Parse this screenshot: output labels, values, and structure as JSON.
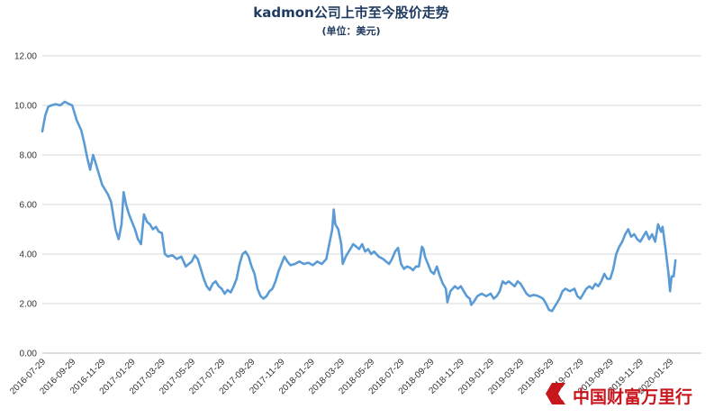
{
  "chart_data": {
    "type": "line",
    "title": "kadmon公司上市至今股价走势",
    "subtitle": "(单位：美元)",
    "ylim": [
      0,
      12
    ],
    "yticks": [
      "0.00",
      "2.00",
      "4.00",
      "6.00",
      "8.00",
      "10.00",
      "12.00"
    ],
    "categories": [
      "2016-07-29",
      "2016-09-29",
      "2016-11-29",
      "2017-01-29",
      "2017-03-29",
      "2017-05-29",
      "2017-07-29",
      "2017-09-29",
      "2017-11-29",
      "2018-01-29",
      "2018-03-29",
      "2018-05-29",
      "2018-07-29",
      "2018-09-29",
      "2018-11-29",
      "2019-01-29",
      "2019-03-29",
      "2019-05-29",
      "2019-07-29",
      "2019-09-29",
      "2019-11-29",
      "2020-01-29"
    ],
    "grid": true,
    "legend": "none",
    "series": [
      {
        "color": "#5b9bd5",
        "points": [
          [
            0.0,
            8.95
          ],
          [
            0.1,
            9.6
          ],
          [
            0.2,
            9.95
          ],
          [
            0.3,
            10.0
          ],
          [
            0.45,
            10.05
          ],
          [
            0.6,
            10.0
          ],
          [
            0.75,
            10.15
          ],
          [
            0.9,
            10.05
          ],
          [
            1.0,
            10.0
          ],
          [
            1.15,
            9.4
          ],
          [
            1.3,
            9.0
          ],
          [
            1.4,
            8.5
          ],
          [
            1.5,
            7.9
          ],
          [
            1.6,
            7.4
          ],
          [
            1.7,
            8.0
          ],
          [
            1.8,
            7.6
          ],
          [
            1.9,
            7.2
          ],
          [
            2.0,
            6.8
          ],
          [
            2.1,
            6.6
          ],
          [
            2.2,
            6.4
          ],
          [
            2.3,
            6.1
          ],
          [
            2.45,
            5.0
          ],
          [
            2.55,
            4.6
          ],
          [
            2.65,
            5.2
          ],
          [
            2.72,
            6.5
          ],
          [
            2.8,
            6.0
          ],
          [
            2.9,
            5.6
          ],
          [
            3.0,
            5.3
          ],
          [
            3.1,
            5.0
          ],
          [
            3.2,
            4.6
          ],
          [
            3.3,
            4.4
          ],
          [
            3.4,
            5.6
          ],
          [
            3.5,
            5.3
          ],
          [
            3.6,
            5.2
          ],
          [
            3.7,
            5.0
          ],
          [
            3.8,
            5.1
          ],
          [
            3.9,
            4.9
          ],
          [
            4.0,
            4.85
          ],
          [
            4.1,
            4.0
          ],
          [
            4.2,
            3.9
          ],
          [
            4.35,
            3.95
          ],
          [
            4.5,
            3.8
          ],
          [
            4.65,
            3.9
          ],
          [
            4.8,
            3.5
          ],
          [
            4.9,
            3.6
          ],
          [
            5.0,
            3.7
          ],
          [
            5.1,
            3.95
          ],
          [
            5.2,
            3.8
          ],
          [
            5.3,
            3.4
          ],
          [
            5.4,
            3.0
          ],
          [
            5.5,
            2.7
          ],
          [
            5.6,
            2.55
          ],
          [
            5.7,
            2.8
          ],
          [
            5.8,
            2.9
          ],
          [
            5.9,
            2.7
          ],
          [
            6.0,
            2.6
          ],
          [
            6.1,
            2.4
          ],
          [
            6.2,
            2.55
          ],
          [
            6.3,
            2.45
          ],
          [
            6.4,
            2.7
          ],
          [
            6.5,
            3.0
          ],
          [
            6.6,
            3.6
          ],
          [
            6.7,
            4.0
          ],
          [
            6.8,
            4.1
          ],
          [
            6.9,
            3.9
          ],
          [
            7.0,
            3.5
          ],
          [
            7.1,
            3.2
          ],
          [
            7.2,
            2.6
          ],
          [
            7.3,
            2.3
          ],
          [
            7.4,
            2.2
          ],
          [
            7.5,
            2.3
          ],
          [
            7.6,
            2.5
          ],
          [
            7.7,
            2.6
          ],
          [
            7.8,
            2.9
          ],
          [
            7.9,
            3.3
          ],
          [
            8.0,
            3.6
          ],
          [
            8.1,
            3.9
          ],
          [
            8.2,
            3.7
          ],
          [
            8.3,
            3.55
          ],
          [
            8.45,
            3.6
          ],
          [
            8.6,
            3.7
          ],
          [
            8.75,
            3.6
          ],
          [
            8.9,
            3.65
          ],
          [
            9.05,
            3.55
          ],
          [
            9.2,
            3.7
          ],
          [
            9.35,
            3.6
          ],
          [
            9.5,
            3.8
          ],
          [
            9.6,
            4.4
          ],
          [
            9.7,
            5.0
          ],
          [
            9.75,
            5.8
          ],
          [
            9.8,
            5.2
          ],
          [
            9.9,
            5.0
          ],
          [
            10.0,
            4.4
          ],
          [
            10.05,
            3.6
          ],
          [
            10.15,
            3.9
          ],
          [
            10.3,
            4.2
          ],
          [
            10.4,
            4.4
          ],
          [
            10.5,
            4.3
          ],
          [
            10.6,
            4.2
          ],
          [
            10.7,
            4.4
          ],
          [
            10.8,
            4.1
          ],
          [
            10.9,
            4.2
          ],
          [
            11.0,
            4.0
          ],
          [
            11.1,
            4.1
          ],
          [
            11.25,
            3.9
          ],
          [
            11.4,
            3.8
          ],
          [
            11.5,
            3.7
          ],
          [
            11.6,
            3.6
          ],
          [
            11.7,
            3.8
          ],
          [
            11.8,
            4.1
          ],
          [
            11.9,
            4.25
          ],
          [
            12.0,
            3.6
          ],
          [
            12.1,
            3.4
          ],
          [
            12.2,
            3.5
          ],
          [
            12.3,
            3.45
          ],
          [
            12.4,
            3.35
          ],
          [
            12.5,
            3.5
          ],
          [
            12.6,
            3.5
          ],
          [
            12.7,
            4.3
          ],
          [
            12.75,
            4.2
          ],
          [
            12.8,
            3.9
          ],
          [
            12.9,
            3.6
          ],
          [
            13.0,
            3.3
          ],
          [
            13.1,
            3.2
          ],
          [
            13.2,
            3.5
          ],
          [
            13.3,
            3.1
          ],
          [
            13.4,
            2.8
          ],
          [
            13.5,
            2.6
          ],
          [
            13.55,
            2.05
          ],
          [
            13.65,
            2.5
          ],
          [
            13.8,
            2.7
          ],
          [
            13.9,
            2.6
          ],
          [
            14.0,
            2.7
          ],
          [
            14.1,
            2.5
          ],
          [
            14.2,
            2.3
          ],
          [
            14.3,
            2.2
          ],
          [
            14.35,
            1.95
          ],
          [
            14.45,
            2.1
          ],
          [
            14.55,
            2.3
          ],
          [
            14.7,
            2.4
          ],
          [
            14.85,
            2.3
          ],
          [
            15.0,
            2.4
          ],
          [
            15.1,
            2.2
          ],
          [
            15.2,
            2.3
          ],
          [
            15.3,
            2.5
          ],
          [
            15.4,
            2.9
          ],
          [
            15.5,
            2.8
          ],
          [
            15.6,
            2.9
          ],
          [
            15.7,
            2.8
          ],
          [
            15.8,
            2.7
          ],
          [
            15.9,
            2.9
          ],
          [
            16.0,
            2.8
          ],
          [
            16.1,
            2.6
          ],
          [
            16.2,
            2.4
          ],
          [
            16.3,
            2.3
          ],
          [
            16.45,
            2.35
          ],
          [
            16.6,
            2.3
          ],
          [
            16.75,
            2.2
          ],
          [
            16.85,
            2.0
          ],
          [
            16.95,
            1.75
          ],
          [
            17.05,
            1.7
          ],
          [
            17.15,
            1.9
          ],
          [
            17.3,
            2.2
          ],
          [
            17.4,
            2.5
          ],
          [
            17.5,
            2.6
          ],
          [
            17.65,
            2.5
          ],
          [
            17.8,
            2.6
          ],
          [
            17.9,
            2.3
          ],
          [
            18.0,
            2.2
          ],
          [
            18.1,
            2.4
          ],
          [
            18.2,
            2.6
          ],
          [
            18.3,
            2.7
          ],
          [
            18.4,
            2.6
          ],
          [
            18.5,
            2.8
          ],
          [
            18.6,
            2.7
          ],
          [
            18.7,
            2.9
          ],
          [
            18.8,
            3.2
          ],
          [
            18.9,
            3.0
          ],
          [
            19.0,
            3.0
          ],
          [
            19.1,
            3.4
          ],
          [
            19.2,
            4.0
          ],
          [
            19.3,
            4.3
          ],
          [
            19.4,
            4.5
          ],
          [
            19.5,
            4.8
          ],
          [
            19.6,
            5.0
          ],
          [
            19.7,
            4.7
          ],
          [
            19.8,
            4.8
          ],
          [
            19.9,
            4.6
          ],
          [
            20.0,
            4.5
          ],
          [
            20.1,
            4.7
          ],
          [
            20.2,
            4.9
          ],
          [
            20.3,
            4.6
          ],
          [
            20.4,
            4.8
          ],
          [
            20.5,
            4.5
          ],
          [
            20.6,
            5.2
          ],
          [
            20.7,
            4.9
          ],
          [
            20.75,
            5.1
          ],
          [
            20.85,
            4.2
          ],
          [
            20.95,
            3.2
          ],
          [
            21.0,
            2.5
          ],
          [
            21.05,
            3.1
          ],
          [
            21.12,
            3.1
          ],
          [
            21.18,
            3.75
          ]
        ]
      }
    ]
  },
  "watermark": {
    "text": "中国财富万里行",
    "color": "#c8161d"
  }
}
